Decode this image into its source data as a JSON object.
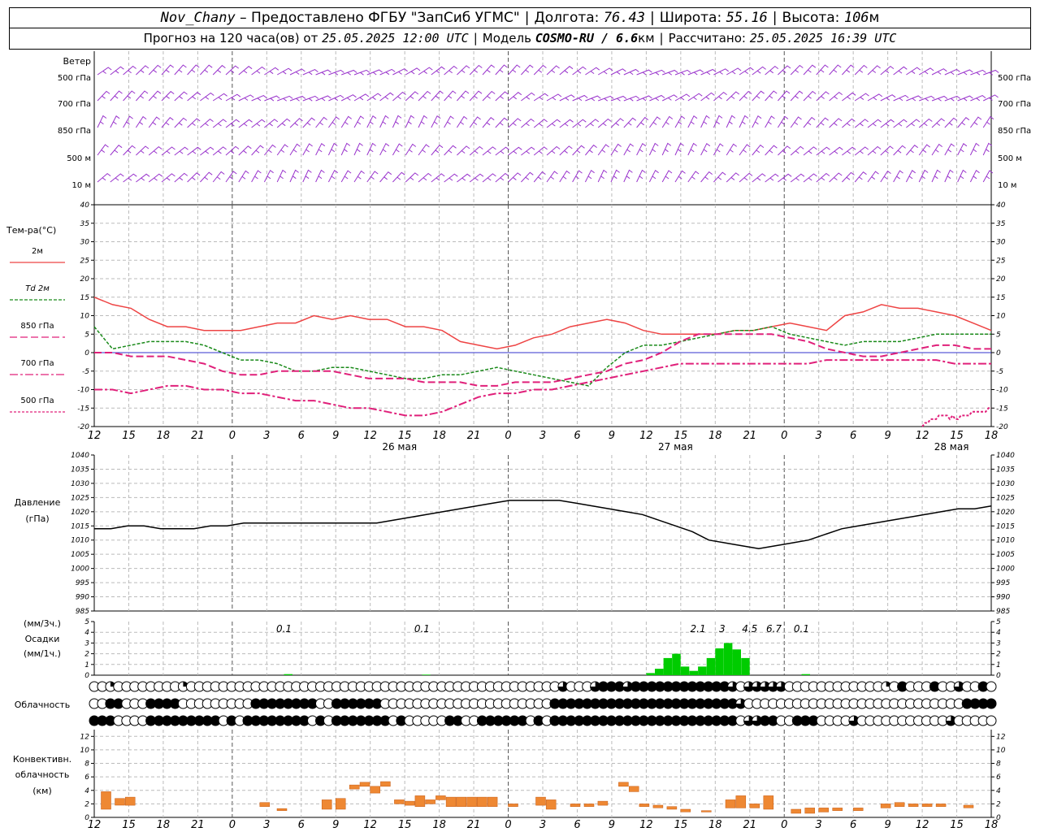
{
  "header": {
    "station": "Nov_Chany",
    "provider": "– Предоставлено ФГБУ \"ЗапСиб УГМС\"",
    "lon_label": "Долгота:",
    "lon": "76.43",
    "lat_label": "Широта:",
    "lat": "55.16",
    "alt_label": "Высота:",
    "alt": "106",
    "alt_unit": "м",
    "forecast_label": "Прогноз на 120 часа(ов) от",
    "issued": "25.05.2025 12:00 UTC",
    "model_label": "Модель",
    "model": "COSMO-RU / 6.6",
    "model_unit": "км",
    "computed_label": "Рассчитано:",
    "computed": "25.05.2025 16:39 UTC"
  },
  "colors": {
    "t2m": "#ee4444",
    "td2m": "#1a8a1a",
    "t850": "#e0207a",
    "t700": "#e0207a",
    "t500": "#e0207a",
    "wind": "#9933cc",
    "pressure": "#000000",
    "precip": "#00cc00",
    "conv": "#ee8833",
    "zero_line": "#3333cc"
  },
  "chart_data": {
    "type": "meteogram",
    "x_hours_labels": [
      "12",
      "15",
      "18",
      "21",
      "0",
      "3",
      "6",
      "9",
      "12",
      "15",
      "18",
      "21",
      "0",
      "3",
      "6",
      "9",
      "12",
      "15",
      "18",
      "21",
      "0",
      "3",
      "6",
      "9",
      "12",
      "15",
      "18"
    ],
    "day_labels": [
      {
        "label": "26 мая",
        "x_index": 8
      },
      {
        "label": "27 мая",
        "x_index": 16
      },
      {
        "label": "28 мая",
        "x_index": 24
      }
    ],
    "wind": {
      "title": "Ветер",
      "levels": [
        "500 гПа",
        "700 гПа",
        "850 гПа",
        "500 м",
        "10 м"
      ]
    },
    "temperature": {
      "title": "Тем-ра(°С)",
      "ylim": [
        -20,
        40
      ],
      "yticks": [
        -20,
        -15,
        -10,
        -5,
        0,
        5,
        10,
        15,
        20,
        25,
        30,
        35,
        40
      ],
      "legend": [
        "2м",
        "Td 2м",
        "850 гПа",
        "700 гПа",
        "500 гПа"
      ],
      "series": [
        {
          "name": "2м",
          "values": [
            15,
            13,
            12,
            9,
            7,
            7,
            6,
            6,
            6,
            7,
            8,
            8,
            10,
            9,
            10,
            9,
            9,
            7,
            7,
            6,
            3,
            2,
            1,
            2,
            4,
            5,
            7,
            8,
            9,
            8,
            6,
            5,
            5,
            5,
            5,
            6,
            6,
            7,
            8,
            7,
            6,
            10,
            11,
            13,
            12,
            12,
            11,
            10,
            8,
            6
          ]
        },
        {
          "name": "Td 2м",
          "values": [
            7,
            1,
            2,
            3,
            3,
            3,
            2,
            0,
            -2,
            -2,
            -3,
            -5,
            -5,
            -4,
            -4,
            -5,
            -6,
            -7,
            -7,
            -6,
            -6,
            -5,
            -4,
            -5,
            -6,
            -7,
            -8,
            -9,
            -4,
            0,
            2,
            2,
            3,
            4,
            5,
            6,
            6,
            7,
            5,
            4,
            3,
            2,
            3,
            3,
            3,
            4,
            5,
            5,
            5,
            5
          ]
        },
        {
          "name": "850 гПа",
          "values": [
            0,
            0,
            -1,
            -1,
            -1,
            -2,
            -3,
            -5,
            -6,
            -6,
            -5,
            -5,
            -5,
            -5,
            -6,
            -7,
            -7,
            -7,
            -8,
            -8,
            -8,
            -9,
            -9,
            -8,
            -8,
            -8,
            -7,
            -6,
            -5,
            -3,
            -2,
            0,
            3,
            5,
            5,
            5,
            5,
            5,
            4,
            3,
            1,
            0,
            -1,
            -1,
            0,
            1,
            2,
            2,
            1,
            1
          ]
        },
        {
          "name": "700 гПа",
          "values": [
            -10,
            -10,
            -11,
            -10,
            -9,
            -9,
            -10,
            -10,
            -11,
            -11,
            -12,
            -13,
            -13,
            -14,
            -15,
            -15,
            -16,
            -17,
            -17,
            -16,
            -14,
            -12,
            -11,
            -11,
            -10,
            -10,
            -9,
            -8,
            -7,
            -6,
            -5,
            -4,
            -3,
            -3,
            -3,
            -3,
            -3,
            -3,
            -3,
            -3,
            -2,
            -2,
            -2,
            -2,
            -2,
            -2,
            -2,
            -3,
            -3,
            -3
          ]
        },
        {
          "name": "500 гПа",
          "x_from_index": 24,
          "values": [
            -20,
            -19,
            -19,
            -18,
            -18,
            -18,
            -17,
            -17,
            -17,
            -17,
            -18,
            -17,
            -18,
            -18,
            -17,
            -17,
            -17,
            -17,
            -16,
            -16,
            -16,
            -16,
            -16,
            -16,
            -15,
            -15
          ]
        }
      ]
    },
    "pressure": {
      "title": "Давление",
      "unit": "(гПа)",
      "ylim": [
        985,
        1040
      ],
      "yticks": [
        985,
        990,
        995,
        1000,
        1005,
        1010,
        1015,
        1020,
        1025,
        1030,
        1035,
        1040
      ],
      "values": [
        1014,
        1014,
        1015,
        1015,
        1014,
        1014,
        1014,
        1015,
        1015,
        1016,
        1016,
        1016,
        1016,
        1016,
        1016,
        1016,
        1016,
        1016,
        1017,
        1018,
        1019,
        1020,
        1021,
        1022,
        1023,
        1024,
        1024,
        1024,
        1024,
        1023,
        1022,
        1021,
        1020,
        1019,
        1017,
        1015,
        1013,
        1010,
        1009,
        1008,
        1007,
        1008,
        1009,
        1010,
        1012,
        1014,
        1015,
        1016,
        1017,
        1018,
        1019,
        1020,
        1021,
        1021,
        1022
      ]
    },
    "precip": {
      "title": "Осадки",
      "unit_3h": "(мм/3ч.)",
      "unit_1h": "(мм/1ч.)",
      "ylim": [
        0,
        5
      ],
      "yticks": [
        0,
        1,
        2,
        3,
        4,
        5
      ],
      "totals_3h": [
        {
          "x_index": 5.5,
          "value": "0.1"
        },
        {
          "x_index": 9.5,
          "value": "0.1"
        },
        {
          "x_index": 17.5,
          "value": "2.1"
        },
        {
          "x_index": 18.2,
          "value": "3"
        },
        {
          "x_index": 19.0,
          "value": "4.5"
        },
        {
          "x_index": 19.7,
          "value": "6.7"
        },
        {
          "x_index": 20.5,
          "value": "0.1"
        }
      ],
      "bars": [
        {
          "h": 5.5,
          "v": 0.1
        },
        {
          "h": 9.5,
          "v": 0.05
        },
        {
          "h": 16.0,
          "v": 0.2
        },
        {
          "h": 16.25,
          "v": 0.6
        },
        {
          "h": 16.5,
          "v": 1.6
        },
        {
          "h": 16.75,
          "v": 2.0
        },
        {
          "h": 17.0,
          "v": 0.8
        },
        {
          "h": 17.25,
          "v": 0.4
        },
        {
          "h": 17.5,
          "v": 0.8
        },
        {
          "h": 17.75,
          "v": 1.6
        },
        {
          "h": 18.0,
          "v": 2.5
        },
        {
          "h": 18.25,
          "v": 3.0
        },
        {
          "h": 18.5,
          "v": 2.4
        },
        {
          "h": 18.75,
          "v": 1.6
        },
        {
          "h": 20.5,
          "v": 0.1
        }
      ]
    },
    "clouds": {
      "title": "Облачность",
      "rows": [
        "0010000000010000000000000000000000000000000000000000000000300034443444444444444303333300000000000010400040030040",
        "0044000444400000000044444444004444440000000000000000000004444444444444444444444430000000000000000000000000004444",
        "4440000444444444040444444440404444444040000044004444440404444444444444444444444403344004440000300000000000300000"
      ]
    },
    "convective": {
      "title": "Конвективн. облачность",
      "unit": "(км)",
      "ylim": [
        0,
        13
      ],
      "yticks": [
        0,
        2,
        4,
        6,
        8,
        10,
        12
      ],
      "blocks": [
        {
          "h": 0.2,
          "b": 1.2,
          "t": 3.8
        },
        {
          "h": 0.6,
          "b": 1.8,
          "t": 2.8
        },
        {
          "h": 0.9,
          "b": 1.8,
          "t": 3.0
        },
        {
          "h": 4.8,
          "b": 1.6,
          "t": 2.2
        },
        {
          "h": 5.3,
          "b": 1.0,
          "t": 1.3
        },
        {
          "h": 6.6,
          "b": 1.2,
          "t": 2.6
        },
        {
          "h": 7.0,
          "b": 1.2,
          "t": 2.8
        },
        {
          "h": 7.4,
          "b": 4.2,
          "t": 4.8
        },
        {
          "h": 7.7,
          "b": 4.6,
          "t": 5.2
        },
        {
          "h": 8.0,
          "b": 3.6,
          "t": 4.6
        },
        {
          "h": 8.3,
          "b": 4.6,
          "t": 5.3
        },
        {
          "h": 8.7,
          "b": 2.0,
          "t": 2.6
        },
        {
          "h": 9.0,
          "b": 1.8,
          "t": 2.4
        },
        {
          "h": 9.3,
          "b": 1.6,
          "t": 3.2
        },
        {
          "h": 9.6,
          "b": 2.0,
          "t": 2.6
        },
        {
          "h": 9.9,
          "b": 2.6,
          "t": 3.2
        },
        {
          "h": 10.2,
          "b": 1.6,
          "t": 3.0
        },
        {
          "h": 10.5,
          "b": 1.6,
          "t": 3.0
        },
        {
          "h": 10.8,
          "b": 1.6,
          "t": 3.0
        },
        {
          "h": 11.1,
          "b": 1.6,
          "t": 3.0
        },
        {
          "h": 11.4,
          "b": 1.6,
          "t": 3.0
        },
        {
          "h": 12.0,
          "b": 1.6,
          "t": 2.0
        },
        {
          "h": 12.8,
          "b": 1.8,
          "t": 3.0
        },
        {
          "h": 13.1,
          "b": 1.2,
          "t": 2.6
        },
        {
          "h": 13.8,
          "b": 1.6,
          "t": 2.0
        },
        {
          "h": 14.2,
          "b": 1.6,
          "t": 2.0
        },
        {
          "h": 14.6,
          "b": 1.8,
          "t": 2.4
        },
        {
          "h": 15.2,
          "b": 4.6,
          "t": 5.2
        },
        {
          "h": 15.5,
          "b": 3.8,
          "t": 4.6
        },
        {
          "h": 15.8,
          "b": 1.6,
          "t": 2.0
        },
        {
          "h": 16.2,
          "b": 1.4,
          "t": 1.8
        },
        {
          "h": 16.6,
          "b": 1.2,
          "t": 1.6
        },
        {
          "h": 17.0,
          "b": 0.8,
          "t": 1.2
        },
        {
          "h": 17.6,
          "b": 0.8,
          "t": 1.0
        },
        {
          "h": 18.3,
          "b": 1.4,
          "t": 2.6
        },
        {
          "h": 18.6,
          "b": 1.4,
          "t": 3.2
        },
        {
          "h": 19.0,
          "b": 1.4,
          "t": 2.0
        },
        {
          "h": 19.4,
          "b": 1.2,
          "t": 3.2
        },
        {
          "h": 20.2,
          "b": 0.6,
          "t": 1.2
        },
        {
          "h": 20.6,
          "b": 0.6,
          "t": 1.4
        },
        {
          "h": 21.0,
          "b": 0.8,
          "t": 1.4
        },
        {
          "h": 21.4,
          "b": 1.0,
          "t": 1.4
        },
        {
          "h": 22.0,
          "b": 1.0,
          "t": 1.4
        },
        {
          "h": 22.8,
          "b": 1.4,
          "t": 2.0
        },
        {
          "h": 23.2,
          "b": 1.6,
          "t": 2.2
        },
        {
          "h": 23.6,
          "b": 1.6,
          "t": 2.0
        },
        {
          "h": 24.0,
          "b": 1.6,
          "t": 2.0
        },
        {
          "h": 24.4,
          "b": 1.6,
          "t": 2.0
        },
        {
          "h": 25.2,
          "b": 1.4,
          "t": 1.8
        }
      ]
    }
  }
}
